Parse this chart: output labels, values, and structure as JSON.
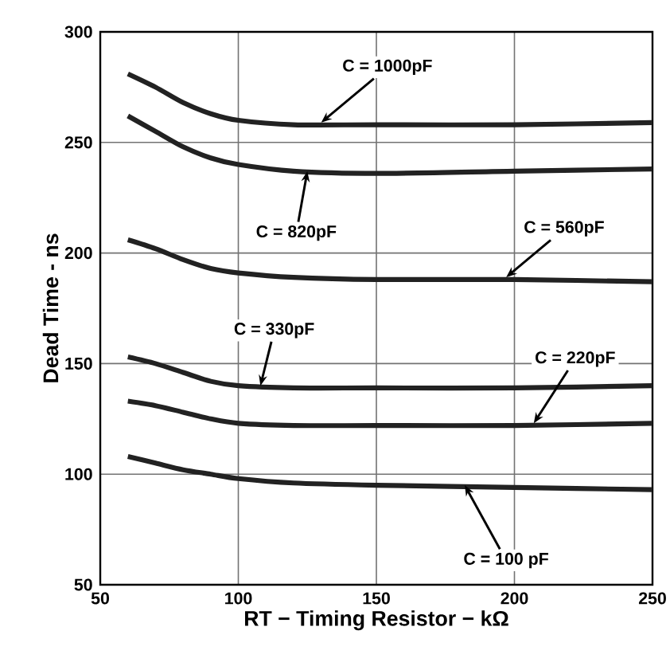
{
  "chart_data": {
    "type": "line",
    "xlabel": "RT − Timing Resistor − kΩ",
    "ylabel": "Dead Time - ns",
    "x": [
      60,
      70,
      80,
      90,
      100,
      120,
      150,
      200,
      250
    ],
    "series": [
      {
        "color": "#222222",
        "values": [
          281,
          275,
          268,
          263,
          260,
          258,
          258,
          258,
          259
        ]
      },
      {
        "color": "#222222",
        "values": [
          262,
          255,
          248,
          243,
          240,
          237,
          236,
          237,
          238
        ]
      },
      {
        "color": "#222222",
        "values": [
          206,
          202,
          197,
          193,
          191,
          189,
          188,
          188,
          187
        ]
      },
      {
        "color": "#222222",
        "values": [
          153,
          150,
          146,
          142,
          140,
          139,
          139,
          139,
          140
        ]
      },
      {
        "color": "#222222",
        "values": [
          133,
          131,
          128,
          125,
          123,
          122,
          122,
          122,
          123
        ]
      },
      {
        "color": "#222222",
        "values": [
          108,
          105,
          102,
          100,
          98,
          96,
          95,
          94,
          93
        ]
      }
    ],
    "annotations": [
      {
        "text": "C = 1000pF",
        "x": 130,
        "y": 259
      },
      {
        "text": "C = 820pF",
        "x": 125,
        "y": 237
      },
      {
        "text": "C = 560pF",
        "x": 197,
        "y": 189
      },
      {
        "text": "C = 330pF",
        "x": 108,
        "y": 140
      },
      {
        "text": "C = 220pF",
        "x": 207,
        "y": 123
      },
      {
        "text": "C = 100 pF",
        "x": 182,
        "y": 95
      }
    ],
    "xlim": [
      50,
      250
    ],
    "ylim": [
      50,
      300
    ],
    "xticks": [
      50,
      100,
      150,
      200,
      250
    ],
    "yticks": [
      50,
      100,
      150,
      200,
      250,
      300
    ],
    "grid": true,
    "legend": false,
    "marker": "none",
    "line_style": "solid"
  }
}
